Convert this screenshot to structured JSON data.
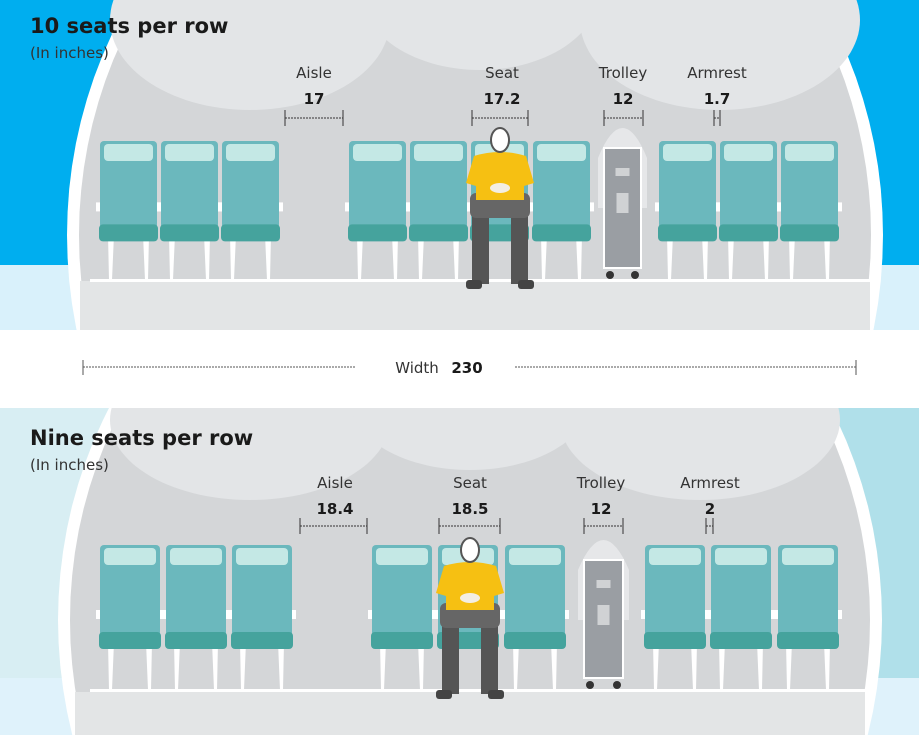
{
  "colors": {
    "sky_top": "#00aeef",
    "sky_bottom": "#b0e0ea",
    "fuselage": "#d4d6d8",
    "seat": "#6bb8bd",
    "seat_cushion": "#45a39d",
    "headrest": "#c4e8e5",
    "shirt": "#f6c012",
    "trolley": "#9a9ea3"
  },
  "top": {
    "title": "10 seats per row",
    "subtitle": "(In inches)",
    "measures": [
      {
        "label": "Aisle",
        "value": "17"
      },
      {
        "label": "Seat",
        "value": "17.2"
      },
      {
        "label": "Trolley",
        "value": "12"
      },
      {
        "label": "Armrest",
        "value": "1.7"
      }
    ]
  },
  "width": {
    "label": "Width",
    "value": "230"
  },
  "bottom": {
    "title": "Nine seats per row",
    "subtitle": "(In inches)",
    "measures": [
      {
        "label": "Aisle",
        "value": "18.4"
      },
      {
        "label": "Seat",
        "value": "18.5"
      },
      {
        "label": "Trolley",
        "value": "12"
      },
      {
        "label": "Armrest",
        "value": "2"
      }
    ]
  }
}
